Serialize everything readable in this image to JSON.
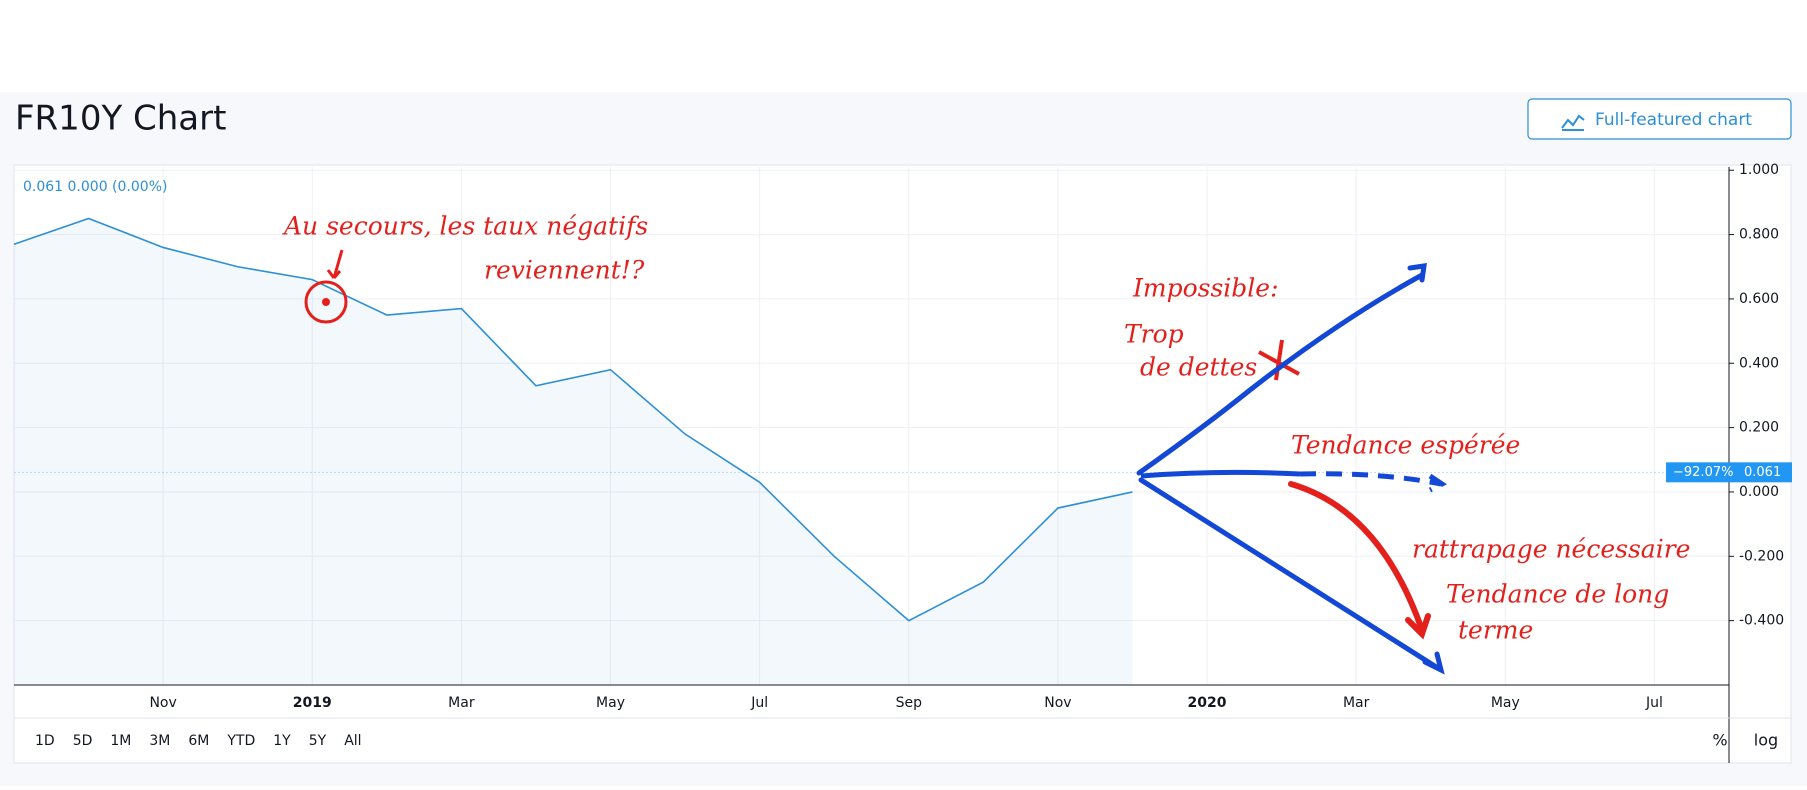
{
  "chart_data": {
    "type": "line",
    "title": "FR10Y Chart",
    "button": "Full-featured chart",
    "ohlc_label": "0.061  0.000 (0.00%)",
    "x": [
      "2018-09",
      "2018-10",
      "2018-11",
      "2018-12",
      "2019-01",
      "2019-02",
      "2019-03",
      "2019-04",
      "2019-05",
      "2019-06",
      "2019-07",
      "2019-08",
      "2019-09",
      "2019-10",
      "2019-11",
      "2019-12"
    ],
    "values": [
      0.77,
      0.85,
      0.76,
      0.7,
      0.66,
      0.55,
      0.57,
      0.33,
      0.38,
      0.18,
      0.03,
      -0.2,
      -0.4,
      -0.28,
      -0.05,
      0.0
    ],
    "color": "#2d8fd5",
    "last_value": 0.061,
    "last_value_label": "0.061",
    "change_pct": -92.07,
    "change_pct_label": "−92.07%",
    "xlim": [
      "2018-09",
      "2020-08"
    ],
    "xticks": [
      {
        "value": "2018-11",
        "label": "Nov"
      },
      {
        "value": "2019-01",
        "label": "2019"
      },
      {
        "value": "2019-03",
        "label": "Mar"
      },
      {
        "value": "2019-05",
        "label": "May"
      },
      {
        "value": "2019-07",
        "label": "Jul"
      },
      {
        "value": "2019-09",
        "label": "Sep"
      },
      {
        "value": "2019-11",
        "label": "Nov"
      },
      {
        "value": "2020-01",
        "label": "2020"
      },
      {
        "value": "2020-03",
        "label": "Mar"
      },
      {
        "value": "2020-05",
        "label": "May"
      },
      {
        "value": "2020-07",
        "label": "Jul"
      }
    ],
    "ylim": [
      -0.6,
      1.01
    ],
    "yticks": [
      {
        "value": 1.0,
        "label": "1.000"
      },
      {
        "value": 0.8,
        "label": "0.800"
      },
      {
        "value": 0.6,
        "label": "0.600"
      },
      {
        "value": 0.4,
        "label": "0.400"
      },
      {
        "value": 0.2,
        "label": "0.200"
      },
      {
        "value": 0.0,
        "label": "0.000"
      },
      {
        "value": -0.2,
        "label": "-0.200"
      },
      {
        "value": -0.4,
        "label": "-0.400"
      }
    ],
    "grid": true,
    "ranges": [
      "1D",
      "5D",
      "1M",
      "3M",
      "6M",
      "YTD",
      "1Y",
      "5Y",
      "All"
    ],
    "scale_options": [
      "%",
      "log"
    ],
    "annotations": [
      "Au secours, les taux négatifs",
      "reviennent!?",
      "Impossible:",
      "Trop",
      "de dettes",
      "Tendance espérée",
      "rattrapage nécessaire",
      "Tendance de long",
      "terme"
    ]
  }
}
